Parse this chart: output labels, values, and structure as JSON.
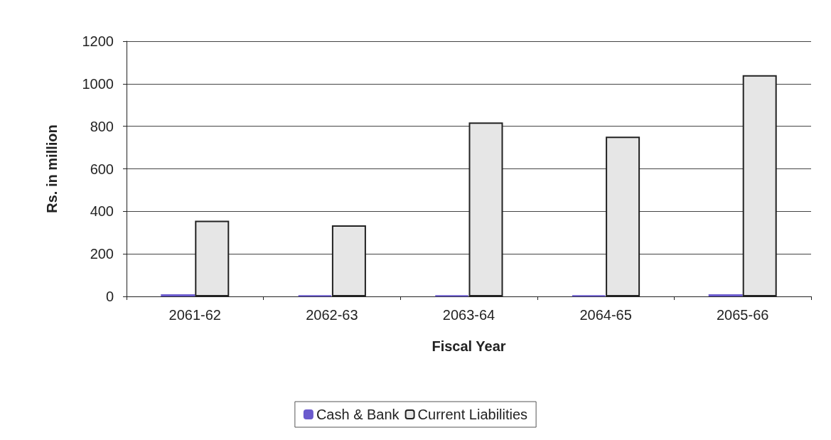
{
  "chart_data": {
    "type": "bar",
    "xlabel": "Fiscal Year",
    "ylabel": "Rs. in million",
    "categories": [
      "2061-62",
      "2062-63",
      "2063-64",
      "2064-65",
      "2065-66"
    ],
    "series": [
      {
        "name": "Cash & Bank",
        "color": "#6a5acd",
        "values": [
          10,
          5,
          5,
          5,
          10
        ]
      },
      {
        "name": "Current Liabilities",
        "color": "#e6e6e6",
        "values": [
          356,
          334,
          818,
          751,
          1040
        ]
      }
    ],
    "ylim": [
      0,
      1200
    ],
    "yticks": [
      0,
      200,
      400,
      600,
      800,
      1000,
      1200
    ],
    "grid": "y",
    "legend": "bottom"
  }
}
